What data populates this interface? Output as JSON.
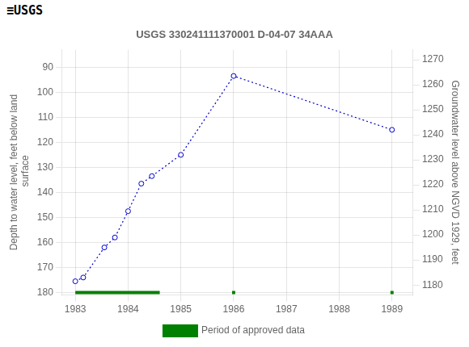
{
  "chart_data": {
    "type": "line",
    "title": "USGS 330241111370001 D-04-07 34AAA",
    "annotations": [
      "≡USGS"
    ],
    "xlim": [
      1982.75,
      1989.4
    ],
    "xticks": [
      1983,
      1984,
      1985,
      1986,
      1987,
      1988,
      1989
    ],
    "ylabel": "Depth to water level, feet below land\n surface",
    "ylim": [
      181,
      83
    ],
    "yticks": [
      90,
      100,
      110,
      120,
      130,
      140,
      150,
      160,
      170,
      180
    ],
    "y2label": "Groundwater level above NGVD 1929, feet",
    "y2lim": [
      1176,
      1274
    ],
    "y2ticks": [
      1180,
      1190,
      1200,
      1210,
      1220,
      1230,
      1240,
      1250,
      1260,
      1270
    ],
    "grid": true,
    "legend": "bottom",
    "series": [
      {
        "type": "line",
        "color": "#0000cc",
        "line_style": "dotted",
        "marker": "circle",
        "x": [
          1983.0,
          1983.15,
          1983.55,
          1983.75,
          1984.0,
          1984.25,
          1984.45,
          1985.0,
          1986.0,
          1989.0
        ],
        "values": [
          175.5,
          174.0,
          162.0,
          158.0,
          147.5,
          136.5,
          133.5,
          125.0,
          93.5,
          115.0
        ]
      },
      {
        "name": "Period of approved data",
        "type": "bar",
        "orientation": "horizontal",
        "color": "#008000",
        "ranges": [
          [
            1983.0,
            1984.6
          ],
          [
            1985.97,
            1986.03
          ],
          [
            1988.97,
            1989.03
          ]
        ],
        "y": 180
      }
    ]
  }
}
